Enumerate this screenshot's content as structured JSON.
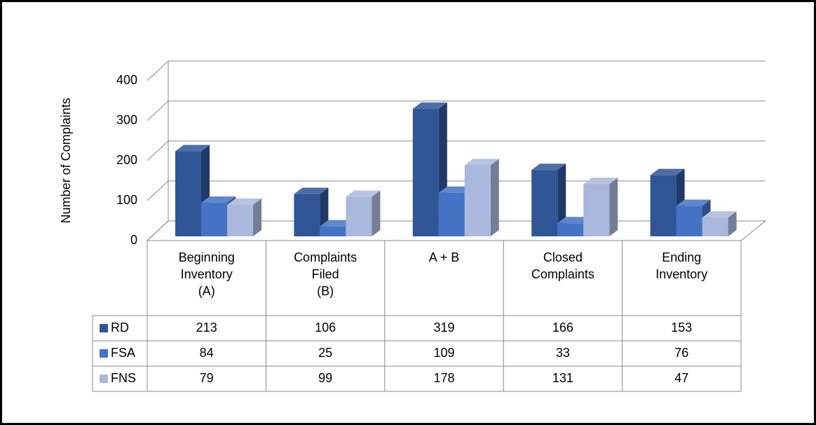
{
  "chart_data": {
    "type": "bar3d",
    "y_axis_label": "Number of Complaints",
    "categories": [
      [
        "Beginning",
        "Inventory",
        "(A)"
      ],
      [
        "Complaints",
        "Filed",
        "(B)"
      ],
      [
        "A + B"
      ],
      [
        "Closed",
        "Complaints"
      ],
      [
        "Ending",
        "Inventory"
      ]
    ],
    "series": [
      {
        "name": "RD",
        "color": "#2f5597",
        "values": [
          213,
          106,
          319,
          166,
          153
        ]
      },
      {
        "name": "FSA",
        "color": "#4472c4",
        "values": [
          84,
          25,
          109,
          33,
          76
        ]
      },
      {
        "name": "FNS",
        "color": "#a9b8dc",
        "values": [
          79,
          99,
          178,
          131,
          47
        ]
      }
    ],
    "ylim": [
      0,
      400
    ],
    "yticks": [
      0,
      100,
      200,
      300,
      400
    ],
    "grid": true
  }
}
